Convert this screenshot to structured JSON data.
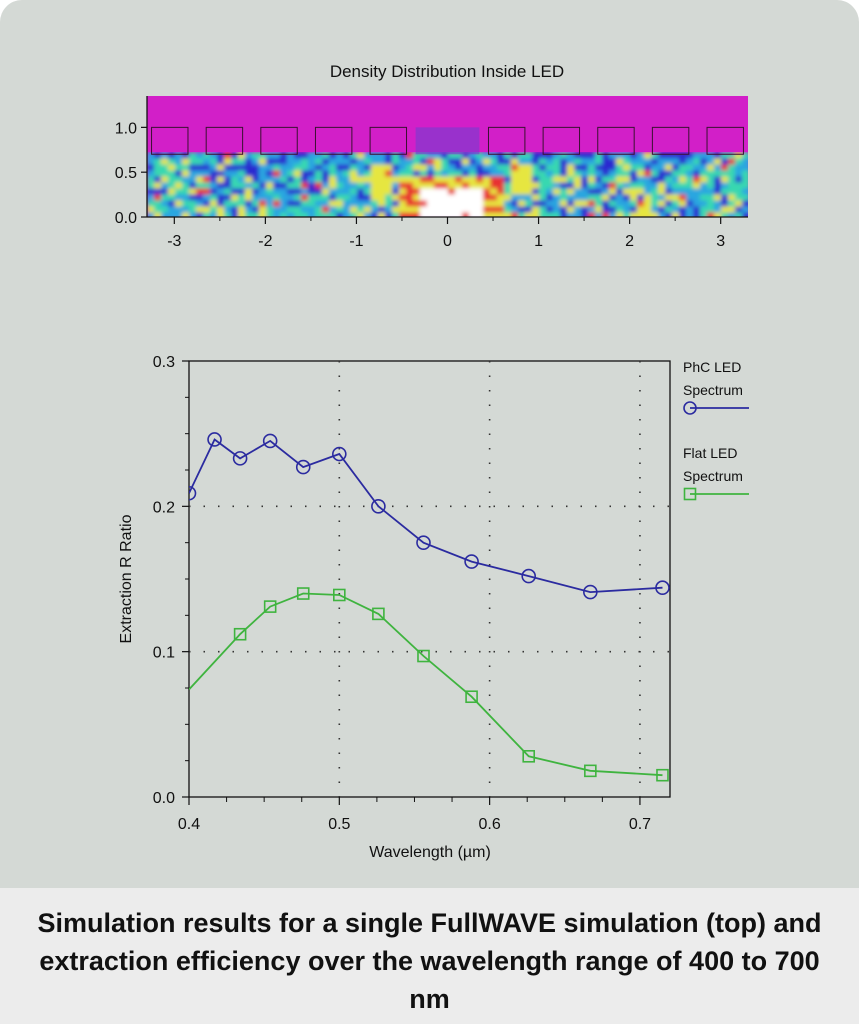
{
  "colors": {
    "card_bg": "#d4d9d5",
    "caption_bg": "#ececec",
    "phc_series": "#2b2ba0",
    "flat_series": "#3fb43f",
    "density_bg": "#d21fc8"
  },
  "chart_data": [
    {
      "type": "heatmap",
      "title": "Density Distribution Inside LED",
      "xlabel": "",
      "ylabel": "",
      "xlim": [
        -3.3,
        3.3
      ],
      "ylim": [
        0.0,
        1.35
      ],
      "x_ticks": [
        -3,
        -2,
        -1,
        0,
        1,
        2,
        3
      ],
      "y_ticks": [
        0.0,
        0.5,
        1.0
      ],
      "x_tick_labels": [
        "-3",
        "-2",
        "-1",
        "0",
        "1",
        "2",
        "3"
      ],
      "y_tick_labels": [
        "0.0",
        "0.5",
        "1.0"
      ],
      "colormap": [
        "#2a2ad0",
        "#2aa6e0",
        "#38d8b0",
        "#e6e640",
        "#e83030",
        "#ffffff"
      ]
    },
    {
      "type": "line",
      "title": "",
      "xlabel": "Wavelength (µm)",
      "ylabel": "Extraction R Ratio",
      "xlim": [
        0.4,
        0.72
      ],
      "ylim": [
        0.0,
        0.3
      ],
      "x_ticks": [
        0.4,
        0.5,
        0.6,
        0.7
      ],
      "y_ticks": [
        0.0,
        0.1,
        0.2,
        0.3
      ],
      "x_tick_labels": [
        "0.4",
        "0.5",
        "0.6",
        "0.7"
      ],
      "y_tick_labels": [
        "0.0",
        "0.1",
        "0.2",
        "0.3"
      ],
      "grid": true,
      "legend_position": "right",
      "series": [
        {
          "name": "PhC LED Spectrum",
          "legend_lines": [
            "PhC LED",
            "Spectrum"
          ],
          "marker": "circle",
          "color": "#2b2ba0",
          "x": [
            0.4,
            0.417,
            0.434,
            0.454,
            0.476,
            0.5,
            0.526,
            0.556,
            0.588,
            0.626,
            0.667,
            0.715
          ],
          "y": [
            0.209,
            0.246,
            0.233,
            0.245,
            0.227,
            0.236,
            0.2,
            0.175,
            0.162,
            0.152,
            0.141,
            0.144
          ]
        },
        {
          "name": "Flat LED Spectrum",
          "legend_lines": [
            "Flat LED",
            "Spectrum"
          ],
          "marker": "square",
          "color": "#3fb43f",
          "x": [
            0.4,
            0.434,
            0.454,
            0.476,
            0.5,
            0.526,
            0.556,
            0.588,
            0.626,
            0.667,
            0.715
          ],
          "y": [
            0.074,
            0.112,
            0.131,
            0.14,
            0.139,
            0.126,
            0.097,
            0.069,
            0.028,
            0.018,
            0.015
          ],
          "markers_from_index": 1
        }
      ]
    }
  ],
  "caption": "Simulation results for a single FullWAVE simulation (top) and extraction efficiency over the wavelength range of 400 to 700 nm"
}
